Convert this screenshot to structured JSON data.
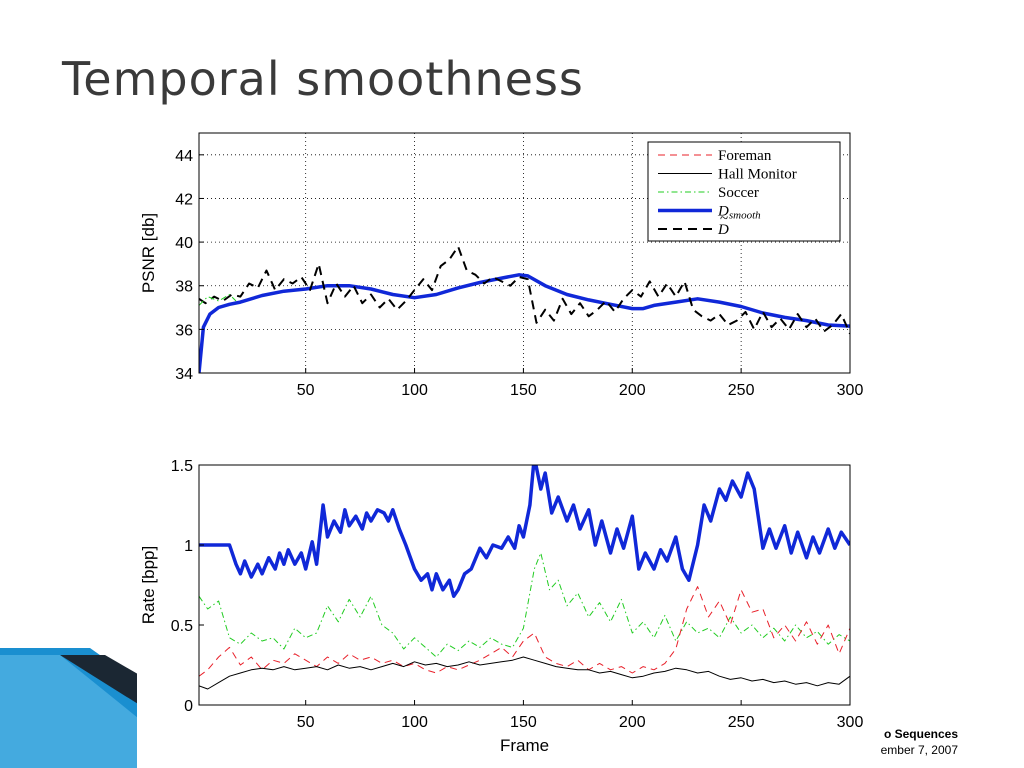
{
  "slide": {
    "title": "Temporal smoothness",
    "footer_line1": "o Sequences",
    "footer_line2": "ember 7, 2007"
  },
  "colors": {
    "foreman": "#e8202a",
    "hall_monitor": "#000000",
    "soccer": "#22cc22",
    "d_smooth": "#1028d8",
    "d_tilde": "#000000",
    "title": "#3a3a3a",
    "decoration_blue": "#1a8fd0"
  },
  "chart_data": [
    {
      "type": "line",
      "xlabel": "",
      "ylabel": "PSNR [db]",
      "xlim": [
        1,
        300
      ],
      "ylim": [
        34,
        45
      ],
      "xticks": [
        50,
        100,
        150,
        200,
        250,
        300
      ],
      "yticks": [
        34,
        36,
        38,
        40,
        42,
        44
      ],
      "grid": true,
      "legend_position": "top-right",
      "legend": [
        {
          "label": "Foreman",
          "style": "dashed",
          "color": "#e8202a"
        },
        {
          "label": "Hall Monitor",
          "style": "solid",
          "color": "#000000"
        },
        {
          "label": "Soccer",
          "style": "dashdot",
          "color": "#22cc22"
        },
        {
          "label": "D_smooth",
          "style": "thick",
          "color": "#1028d8"
        },
        {
          "label": "D~",
          "style": "thickdashed",
          "color": "#000000"
        }
      ],
      "series": [
        {
          "name": "D_smooth",
          "style": "thick",
          "x": [
            1,
            3,
            6,
            10,
            15,
            20,
            30,
            40,
            50,
            60,
            70,
            80,
            90,
            100,
            110,
            120,
            130,
            140,
            148,
            152,
            160,
            170,
            180,
            190,
            200,
            205,
            210,
            220,
            230,
            240,
            250,
            260,
            270,
            280,
            290,
            300
          ],
          "y": [
            34.0,
            36.1,
            36.7,
            37.0,
            37.15,
            37.25,
            37.55,
            37.75,
            37.85,
            38.0,
            38.0,
            37.85,
            37.6,
            37.45,
            37.6,
            37.9,
            38.15,
            38.35,
            38.5,
            38.45,
            38.0,
            37.6,
            37.35,
            37.15,
            36.95,
            36.95,
            37.1,
            37.25,
            37.4,
            37.25,
            37.05,
            36.75,
            36.55,
            36.4,
            36.2,
            36.15
          ]
        },
        {
          "name": "D~",
          "style": "thickdashed",
          "x": [
            1,
            4,
            8,
            12,
            16,
            20,
            24,
            28,
            32,
            36,
            40,
            44,
            48,
            52,
            56,
            60,
            64,
            68,
            72,
            76,
            80,
            84,
            88,
            92,
            96,
            100,
            104,
            108,
            112,
            116,
            120,
            124,
            128,
            132,
            136,
            140,
            144,
            148,
            152,
            156,
            160,
            164,
            168,
            172,
            176,
            180,
            184,
            188,
            192,
            196,
            200,
            204,
            208,
            212,
            216,
            220,
            224,
            228,
            232,
            236,
            240,
            244,
            248,
            252,
            256,
            260,
            264,
            268,
            272,
            276,
            280,
            284,
            288,
            292,
            296,
            300
          ],
          "y": [
            37.4,
            37.2,
            37.5,
            37.3,
            37.6,
            37.5,
            38.1,
            37.9,
            38.7,
            37.8,
            38.3,
            38.1,
            38.4,
            37.8,
            39.0,
            37.2,
            38.1,
            37.5,
            38.0,
            37.2,
            37.6,
            37.0,
            37.4,
            36.9,
            37.3,
            37.8,
            38.3,
            37.8,
            38.9,
            39.2,
            39.8,
            38.7,
            38.5,
            38.1,
            38.4,
            38.2,
            38.0,
            38.4,
            38.3,
            36.3,
            36.9,
            36.4,
            37.4,
            36.7,
            37.2,
            36.6,
            36.9,
            37.3,
            36.8,
            37.4,
            37.8,
            37.5,
            38.2,
            37.5,
            38.1,
            37.5,
            38.2,
            36.9,
            36.6,
            36.4,
            36.7,
            36.2,
            36.4,
            36.8,
            36.0,
            36.8,
            36.1,
            36.5,
            36.0,
            36.7,
            36.1,
            36.5,
            35.9,
            36.2,
            36.7,
            35.8
          ]
        },
        {
          "name": "Soccer",
          "style": "dashdot",
          "x": [
            1,
            5,
            10,
            15,
            18
          ],
          "y": [
            37.1,
            37.5,
            37.3,
            37.6,
            37.3
          ]
        }
      ]
    },
    {
      "type": "line",
      "xlabel": "Frame",
      "ylabel": "Rate [bpp]",
      "xlim": [
        1,
        300
      ],
      "ylim": [
        0,
        1.5
      ],
      "xticks": [
        50,
        100,
        150,
        200,
        250,
        300
      ],
      "yticks": [
        0,
        0.5,
        1,
        1.5
      ],
      "grid": false,
      "series": [
        {
          "name": "D_smooth",
          "style": "thick",
          "x": [
            1,
            15,
            18,
            20,
            22,
            25,
            28,
            30,
            33,
            36,
            38,
            40,
            42,
            45,
            48,
            50,
            53,
            55,
            58,
            60,
            63,
            66,
            68,
            70,
            73,
            76,
            78,
            80,
            83,
            86,
            88,
            90,
            93,
            96,
            100,
            103,
            106,
            108,
            110,
            113,
            116,
            118,
            120,
            123,
            126,
            130,
            133,
            136,
            140,
            143,
            146,
            148,
            150,
            153,
            155,
            158,
            160,
            163,
            166,
            170,
            173,
            176,
            180,
            183,
            186,
            190,
            193,
            196,
            200,
            203,
            206,
            210,
            213,
            216,
            220,
            223,
            226,
            230,
            233,
            236,
            240,
            243,
            246,
            250,
            253,
            256,
            260,
            263,
            266,
            270,
            273,
            276,
            280,
            283,
            286,
            290,
            293,
            296,
            300
          ],
          "y": [
            1.0,
            1.0,
            0.88,
            0.82,
            0.9,
            0.8,
            0.88,
            0.82,
            0.92,
            0.85,
            0.95,
            0.88,
            0.97,
            0.88,
            0.95,
            0.85,
            1.02,
            0.88,
            1.25,
            1.05,
            1.15,
            1.08,
            1.22,
            1.12,
            1.18,
            1.1,
            1.2,
            1.15,
            1.22,
            1.2,
            1.15,
            1.22,
            1.1,
            1.0,
            0.85,
            0.78,
            0.82,
            0.72,
            0.82,
            0.72,
            0.78,
            0.68,
            0.72,
            0.82,
            0.85,
            0.98,
            0.92,
            1.0,
            0.98,
            1.05,
            0.98,
            1.12,
            1.05,
            1.25,
            1.55,
            1.35,
            1.45,
            1.2,
            1.3,
            1.15,
            1.25,
            1.1,
            1.22,
            1.0,
            1.15,
            0.95,
            1.1,
            0.98,
            1.18,
            0.85,
            0.95,
            0.85,
            0.97,
            0.9,
            1.05,
            0.85,
            0.78,
            1.0,
            1.25,
            1.15,
            1.35,
            1.28,
            1.4,
            1.3,
            1.45,
            1.35,
            0.98,
            1.1,
            0.98,
            1.12,
            0.95,
            1.08,
            0.92,
            1.05,
            0.95,
            1.1,
            0.98,
            1.08,
            1.0
          ]
        },
        {
          "name": "Soccer",
          "style": "dashdot",
          "x": [
            1,
            5,
            10,
            15,
            20,
            25,
            30,
            35,
            40,
            45,
            50,
            55,
            60,
            65,
            70,
            75,
            80,
            85,
            90,
            95,
            100,
            105,
            110,
            115,
            120,
            125,
            130,
            135,
            140,
            145,
            150,
            155,
            158,
            162,
            166,
            170,
            175,
            180,
            185,
            190,
            195,
            200,
            205,
            210,
            215,
            220,
            225,
            230,
            235,
            240,
            245,
            250,
            255,
            260,
            265,
            270,
            275,
            280,
            285,
            290,
            295,
            300
          ],
          "y": [
            0.68,
            0.6,
            0.65,
            0.42,
            0.38,
            0.45,
            0.4,
            0.42,
            0.35,
            0.48,
            0.42,
            0.45,
            0.62,
            0.52,
            0.66,
            0.55,
            0.68,
            0.5,
            0.45,
            0.35,
            0.42,
            0.36,
            0.3,
            0.38,
            0.34,
            0.4,
            0.36,
            0.42,
            0.38,
            0.36,
            0.48,
            0.85,
            0.95,
            0.72,
            0.78,
            0.62,
            0.7,
            0.55,
            0.64,
            0.52,
            0.66,
            0.45,
            0.52,
            0.42,
            0.56,
            0.4,
            0.52,
            0.45,
            0.48,
            0.42,
            0.55,
            0.45,
            0.5,
            0.42,
            0.48,
            0.4,
            0.5,
            0.42,
            0.46,
            0.38,
            0.44,
            0.4
          ]
        },
        {
          "name": "Foreman",
          "style": "dashed",
          "x": [
            1,
            5,
            10,
            15,
            20,
            25,
            30,
            35,
            40,
            45,
            50,
            55,
            60,
            65,
            70,
            75,
            80,
            85,
            90,
            95,
            100,
            105,
            110,
            115,
            120,
            125,
            130,
            135,
            140,
            145,
            150,
            155,
            160,
            165,
            170,
            175,
            180,
            185,
            190,
            195,
            200,
            205,
            210,
            215,
            220,
            225,
            230,
            235,
            240,
            245,
            250,
            255,
            260,
            265,
            270,
            275,
            280,
            285,
            290,
            295,
            300
          ],
          "y": [
            0.18,
            0.22,
            0.3,
            0.36,
            0.25,
            0.3,
            0.22,
            0.28,
            0.26,
            0.32,
            0.28,
            0.24,
            0.3,
            0.26,
            0.32,
            0.28,
            0.3,
            0.26,
            0.28,
            0.24,
            0.26,
            0.22,
            0.2,
            0.24,
            0.22,
            0.25,
            0.28,
            0.32,
            0.36,
            0.3,
            0.4,
            0.45,
            0.3,
            0.26,
            0.24,
            0.28,
            0.22,
            0.26,
            0.22,
            0.24,
            0.2,
            0.24,
            0.22,
            0.26,
            0.35,
            0.6,
            0.74,
            0.55,
            0.65,
            0.5,
            0.72,
            0.58,
            0.6,
            0.42,
            0.5,
            0.4,
            0.52,
            0.38,
            0.5,
            0.32,
            0.48
          ]
        },
        {
          "name": "Hall Monitor",
          "style": "solid",
          "x": [
            1,
            5,
            10,
            15,
            20,
            25,
            30,
            35,
            40,
            45,
            50,
            55,
            60,
            65,
            70,
            75,
            80,
            85,
            90,
            95,
            100,
            105,
            110,
            115,
            120,
            125,
            130,
            135,
            140,
            145,
            150,
            155,
            160,
            165,
            170,
            175,
            180,
            185,
            190,
            195,
            200,
            205,
            210,
            215,
            220,
            225,
            230,
            235,
            240,
            245,
            250,
            255,
            260,
            265,
            270,
            275,
            280,
            285,
            290,
            295,
            300
          ],
          "y": [
            0.12,
            0.1,
            0.14,
            0.18,
            0.2,
            0.22,
            0.23,
            0.22,
            0.24,
            0.22,
            0.23,
            0.24,
            0.22,
            0.25,
            0.23,
            0.24,
            0.22,
            0.24,
            0.26,
            0.24,
            0.27,
            0.25,
            0.26,
            0.24,
            0.25,
            0.27,
            0.25,
            0.26,
            0.27,
            0.28,
            0.3,
            0.28,
            0.26,
            0.24,
            0.23,
            0.22,
            0.22,
            0.2,
            0.21,
            0.19,
            0.17,
            0.18,
            0.2,
            0.21,
            0.23,
            0.22,
            0.2,
            0.21,
            0.18,
            0.16,
            0.17,
            0.15,
            0.16,
            0.14,
            0.15,
            0.13,
            0.14,
            0.12,
            0.14,
            0.13,
            0.18
          ]
        }
      ]
    }
  ]
}
